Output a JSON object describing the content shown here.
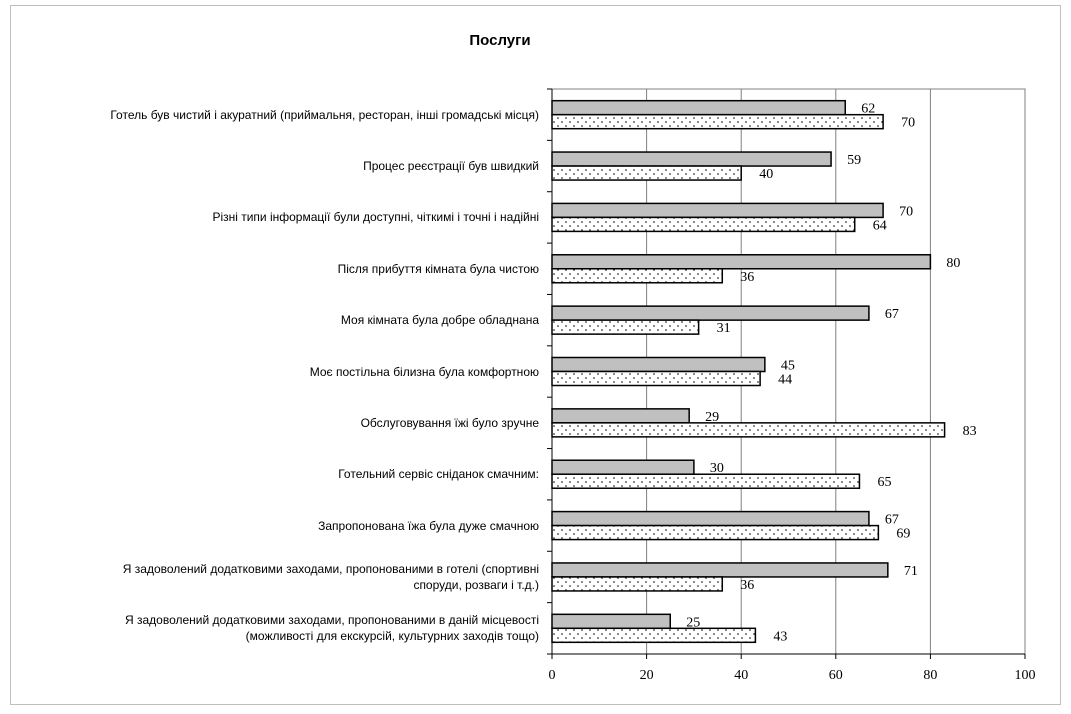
{
  "chart_data": {
    "type": "bar",
    "orientation": "horizontal",
    "title": "Послуги",
    "xlim": [
      0,
      100
    ],
    "xticks": [
      0,
      20,
      40,
      60,
      80,
      100
    ],
    "grid": true,
    "colors": {
      "series1_fill": "#c0c0c0",
      "series2_fill": "#ffffff",
      "series2_dots": "#000000",
      "bar_stroke": "#000000",
      "grid": "#808080"
    },
    "categories": [
      "Готель був чистий і акуратний (приймальня, ресторан, інші громадські місця)",
      "Процес реєстрації був швидкий",
      "Різні типи інформації були доступні, чіткимі і точні і надійні",
      "Після прибуття кімната була чистою",
      "Моя кімната була добре обладнана",
      "Моє постільна білизна була комфортною",
      "Обслуговування їжі було зручне",
      "Готельний сервіс сніданок смачним:",
      "Запропонована їжа була дуже смачною",
      "Я задоволений додатковими заходами, пропонованими в готелі (спортивні споруди, розваги і т.д.)",
      "Я задоволений додатковими заходами, пропонованими в даній місцевості (можливості для екскурсій, культурних заходів тощо)"
    ],
    "category_lines": [
      [
        "Готель був чистий і акуратний (приймальня, ресторан, інші громадські місця)"
      ],
      [
        "Процес реєстрації був швидкий"
      ],
      [
        "Різні типи інформації були доступні, чіткимі і точні і надійні"
      ],
      [
        "Після прибуття кімната була чистою"
      ],
      [
        "Моя кімната була добре обладнана"
      ],
      [
        "Моє постільна білизна була комфортною"
      ],
      [
        "Обслуговування їжі було зручне"
      ],
      [
        "Готельний сервіс сніданок смачним:"
      ],
      [
        "Запропонована їжа була дуже смачною"
      ],
      [
        "Я задоволений додатковими заходами, пропонованими в готелі (спортивні",
        "споруди, розваги і т.д.)"
      ],
      [
        "Я задоволений додатковими заходами, пропонованими в даній місцевості",
        "(можливості для екскурсій, культурних заходів тощо)"
      ]
    ],
    "series": [
      {
        "values": [
          62,
          59,
          70,
          80,
          67,
          45,
          29,
          30,
          67,
          71,
          25
        ],
        "style": "solid-gray"
      },
      {
        "values": [
          70,
          40,
          64,
          36,
          31,
          44,
          83,
          65,
          69,
          36,
          43
        ],
        "style": "dotted"
      }
    ]
  }
}
